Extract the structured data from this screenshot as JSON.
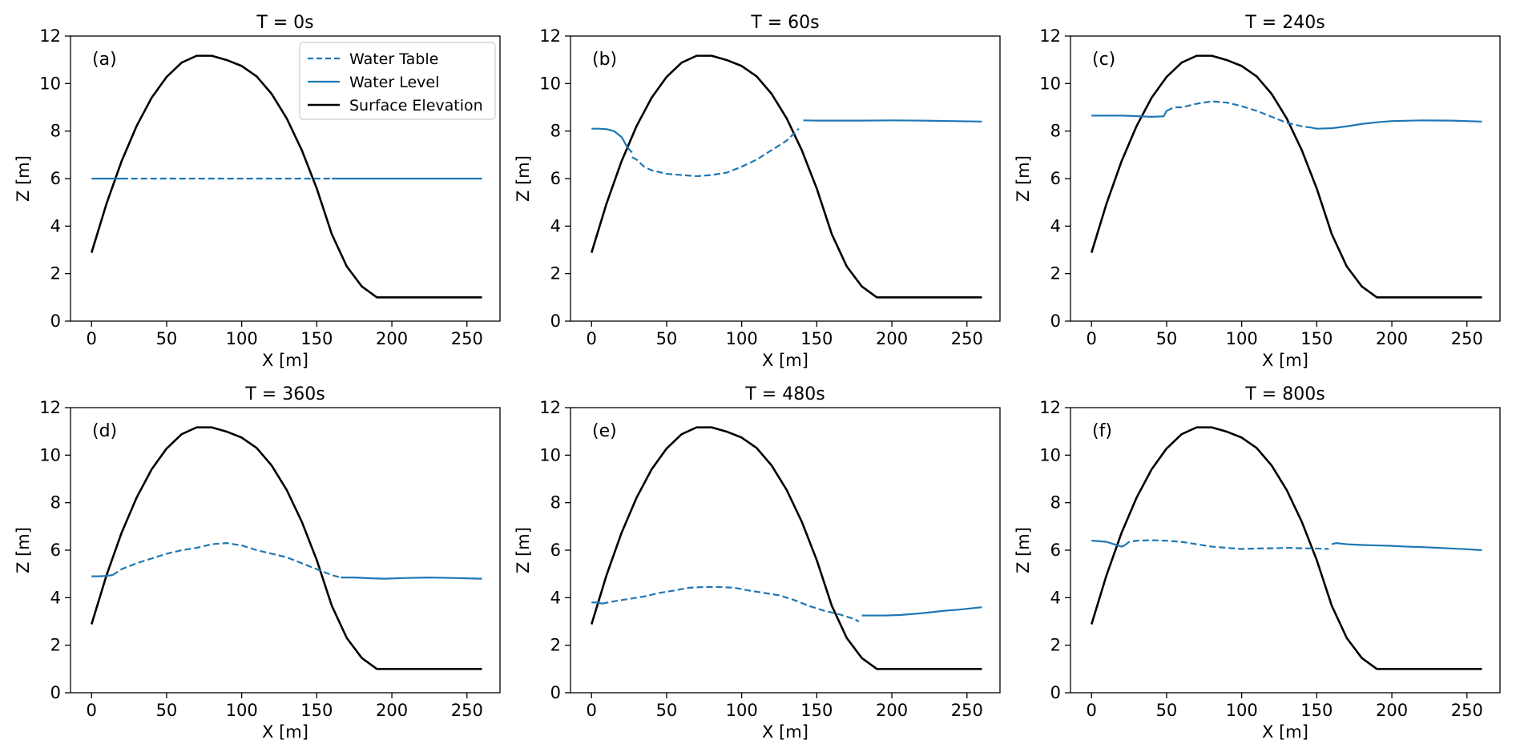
{
  "figure": {
    "legend_panel": 0,
    "legend_position": "top-right",
    "colors": {
      "water": "#1f77b4",
      "surface": "#000000",
      "axes": "#000000",
      "legend_frame": "#cccccc"
    }
  },
  "legend": {
    "entries": [
      {
        "label": "Water Table",
        "style": "dashed",
        "color": "#1f77b4"
      },
      {
        "label": "Water Level",
        "style": "solid",
        "color": "#1f77b4"
      },
      {
        "label": "Surface Elevation",
        "style": "solid-thick",
        "color": "#000000"
      }
    ]
  },
  "chart_data": [
    {
      "type": "line",
      "title": "T =  0s",
      "panel_label": "(a)",
      "xlabel": "X [m]",
      "ylabel": "Z [m]",
      "xlim": [
        -14,
        272
      ],
      "ylim": [
        0,
        12
      ],
      "xticks": [
        0,
        50,
        100,
        150,
        200,
        250
      ],
      "yticks": [
        0,
        2,
        4,
        6,
        8,
        10,
        12
      ],
      "grid": false,
      "series": [
        {
          "name": "Water Table",
          "style": "dashed",
          "x": [
            20,
            40,
            60,
            80,
            100,
            120,
            140,
            160
          ],
          "y": [
            6,
            6,
            6,
            6,
            6,
            6,
            6,
            6
          ]
        },
        {
          "name": "Water Level",
          "style": "solid",
          "segments": [
            {
              "x": [
                0,
                10,
                20
              ],
              "y": [
                6,
                6,
                6
              ]
            },
            {
              "x": [
                160,
                180,
                200,
                220,
                240,
                260
              ],
              "y": [
                6,
                6,
                6,
                6,
                6,
                6
              ]
            }
          ]
        }
      ]
    },
    {
      "type": "line",
      "title": "T =  60s",
      "panel_label": "(b)",
      "xlabel": "X [m]",
      "ylabel": "Z [m]",
      "xlim": [
        -14,
        272
      ],
      "ylim": [
        0,
        12
      ],
      "xticks": [
        0,
        50,
        100,
        150,
        200,
        250
      ],
      "yticks": [
        0,
        2,
        4,
        6,
        8,
        10,
        12
      ],
      "grid": false,
      "series": [
        {
          "name": "Water Table",
          "style": "dashed",
          "x": [
            27,
            30,
            35,
            40,
            50,
            60,
            70,
            80,
            90,
            100,
            110,
            120,
            130,
            138
          ],
          "y": [
            6.9,
            6.8,
            6.5,
            6.35,
            6.2,
            6.15,
            6.1,
            6.15,
            6.25,
            6.5,
            6.8,
            7.2,
            7.6,
            8.1
          ]
        },
        {
          "name": "Water Level",
          "style": "solid",
          "segments": [
            {
              "x": [
                0,
                5,
                10,
                15,
                20,
                24,
                27
              ],
              "y": [
                8.1,
                8.1,
                8.08,
                8.0,
                7.75,
                7.3,
                7.1
              ]
            },
            {
              "x": [
                141,
                150,
                160,
                180,
                200,
                220,
                240,
                260
              ],
              "y": [
                8.45,
                8.44,
                8.44,
                8.44,
                8.45,
                8.44,
                8.42,
                8.4
              ]
            }
          ]
        }
      ]
    },
    {
      "type": "line",
      "title": "T =  240s",
      "panel_label": "(c)",
      "xlabel": "X [m]",
      "ylabel": "Z [m]",
      "xlim": [
        -14,
        272
      ],
      "ylim": [
        0,
        12
      ],
      "xticks": [
        0,
        50,
        100,
        150,
        200,
        250
      ],
      "yticks": [
        0,
        2,
        4,
        6,
        8,
        10,
        12
      ],
      "grid": false,
      "series": [
        {
          "name": "Water Table",
          "style": "dashed",
          "x": [
            50,
            55,
            60,
            70,
            80,
            90,
            100,
            110,
            120,
            130,
            140,
            146
          ],
          "y": [
            8.85,
            9.0,
            9.0,
            9.15,
            9.25,
            9.2,
            9.05,
            8.85,
            8.6,
            8.35,
            8.2,
            8.15
          ]
        },
        {
          "name": "Water Level",
          "style": "solid",
          "segments": [
            {
              "x": [
                0,
                10,
                20,
                30,
                40,
                48,
                50
              ],
              "y": [
                8.65,
                8.65,
                8.65,
                8.63,
                8.6,
                8.62,
                8.85
              ]
            },
            {
              "x": [
                146,
                150,
                160,
                170,
                180,
                190,
                200,
                220,
                240,
                260
              ],
              "y": [
                8.15,
                8.1,
                8.12,
                8.2,
                8.3,
                8.37,
                8.42,
                8.45,
                8.44,
                8.4
              ]
            }
          ]
        }
      ]
    },
    {
      "type": "line",
      "title": "T =  360s",
      "panel_label": "(d)",
      "xlabel": "X [m]",
      "ylabel": "Z [m]",
      "xlim": [
        -14,
        272
      ],
      "ylim": [
        0,
        12
      ],
      "xticks": [
        0,
        50,
        100,
        150,
        200,
        250
      ],
      "yticks": [
        0,
        2,
        4,
        6,
        8,
        10,
        12
      ],
      "grid": false,
      "series": [
        {
          "name": "Water Table",
          "style": "dashed",
          "x": [
            14,
            20,
            30,
            40,
            50,
            60,
            70,
            80,
            90,
            100,
            110,
            120,
            130,
            140,
            150,
            160,
            166
          ],
          "y": [
            4.95,
            5.2,
            5.45,
            5.65,
            5.85,
            6.0,
            6.1,
            6.25,
            6.3,
            6.2,
            6.0,
            5.85,
            5.7,
            5.45,
            5.2,
            4.95,
            4.85
          ]
        },
        {
          "name": "Water Level",
          "style": "solid",
          "segments": [
            {
              "x": [
                0,
                5,
                10,
                14
              ],
              "y": [
                4.9,
                4.9,
                4.92,
                4.95
              ]
            },
            {
              "x": [
                166,
                175,
                185,
                195,
                210,
                225,
                240,
                260
              ],
              "y": [
                4.85,
                4.85,
                4.82,
                4.8,
                4.83,
                4.85,
                4.83,
                4.8
              ]
            }
          ]
        }
      ]
    },
    {
      "type": "line",
      "title": "T =  480s",
      "panel_label": "(e)",
      "xlabel": "X [m]",
      "ylabel": "Z [m]",
      "xlim": [
        -14,
        272
      ],
      "ylim": [
        0,
        12
      ],
      "xticks": [
        0,
        50,
        100,
        150,
        200,
        250
      ],
      "yticks": [
        0,
        2,
        4,
        6,
        8,
        10,
        12
      ],
      "grid": false,
      "series": [
        {
          "name": "Water Table",
          "style": "dashed",
          "x": [
            7,
            15,
            25,
            35,
            45,
            55,
            65,
            75,
            85,
            95,
            105,
            115,
            125,
            135,
            145,
            155,
            165,
            175,
            178
          ],
          "y": [
            3.75,
            3.85,
            3.95,
            4.05,
            4.2,
            4.3,
            4.42,
            4.45,
            4.45,
            4.42,
            4.3,
            4.2,
            4.1,
            3.9,
            3.65,
            3.45,
            3.3,
            3.1,
            3.0
          ]
        },
        {
          "name": "Water Level",
          "style": "solid",
          "segments": [
            {
              "x": [
                0,
                4,
                7
              ],
              "y": [
                3.8,
                3.8,
                3.75
              ]
            },
            {
              "x": [
                180,
                185,
                195,
                205,
                215,
                225,
                235,
                245,
                260
              ],
              "y": [
                3.25,
                3.25,
                3.25,
                3.27,
                3.32,
                3.38,
                3.45,
                3.5,
                3.6
              ]
            }
          ]
        }
      ]
    },
    {
      "type": "line",
      "title": "T =  800s",
      "panel_label": "(f)",
      "xlabel": "X [m]",
      "ylabel": "Z [m]",
      "xlim": [
        -14,
        272
      ],
      "ylim": [
        0,
        12
      ],
      "xticks": [
        0,
        50,
        100,
        150,
        200,
        250
      ],
      "yticks": [
        0,
        2,
        4,
        6,
        8,
        10,
        12
      ],
      "grid": false,
      "series": [
        {
          "name": "Water Table",
          "style": "dashed",
          "x": [
            22,
            25,
            30,
            40,
            50,
            60,
            70,
            80,
            90,
            100,
            110,
            120,
            130,
            140,
            150,
            158
          ],
          "y": [
            6.2,
            6.35,
            6.4,
            6.42,
            6.4,
            6.35,
            6.25,
            6.15,
            6.1,
            6.05,
            6.07,
            6.08,
            6.1,
            6.08,
            6.07,
            6.05
          ]
        },
        {
          "name": "Water Level",
          "style": "solid",
          "segments": [
            {
              "x": [
                0,
                5,
                10,
                15,
                20,
                22
              ],
              "y": [
                6.4,
                6.38,
                6.35,
                6.25,
                6.15,
                6.2
              ]
            },
            {
              "x": [
                160,
                163,
                170,
                180,
                190,
                200,
                210,
                220,
                230,
                240,
                250,
                260
              ],
              "y": [
                6.25,
                6.3,
                6.25,
                6.22,
                6.2,
                6.18,
                6.15,
                6.13,
                6.1,
                6.07,
                6.04,
                6.0
              ]
            }
          ]
        }
      ]
    }
  ],
  "surface": {
    "name": "Surface Elevation",
    "x": [
      0,
      10,
      20,
      30,
      40,
      50,
      60,
      70,
      80,
      90,
      100,
      110,
      120,
      130,
      140,
      150,
      160,
      170,
      180,
      190,
      200,
      210,
      220,
      230,
      240,
      250,
      260
    ],
    "y": [
      2.88,
      4.95,
      6.73,
      8.21,
      9.4,
      10.28,
      10.88,
      11.17,
      11.17,
      10.99,
      10.74,
      10.3,
      9.56,
      8.53,
      7.2,
      5.58,
      3.66,
      2.3,
      1.46,
      1.0,
      1.0,
      1.0,
      1.0,
      1.0,
      1.0,
      1.0,
      1.0
    ]
  }
}
